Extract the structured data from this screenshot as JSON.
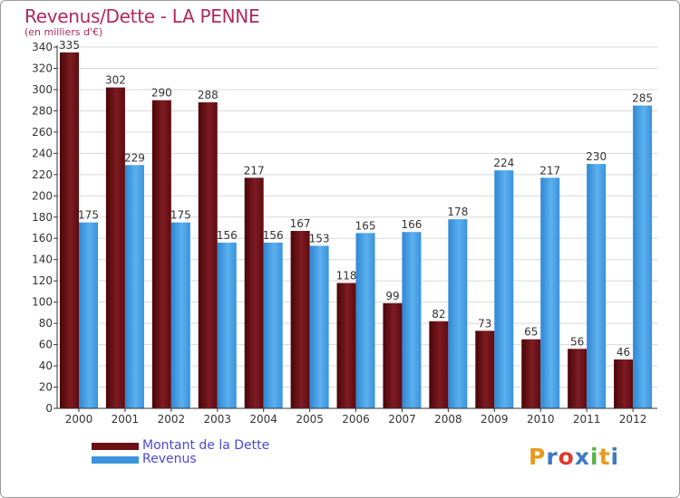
{
  "header": {
    "title": "Revenus/Dette - LA PENNE",
    "subtitle": "(en milliers d'€)"
  },
  "legend": {
    "items": [
      {
        "label": "Montant de la Dette",
        "color": "#6b0f14"
      },
      {
        "label": "Revenus",
        "color": "#3b95dd"
      }
    ]
  },
  "logo": {
    "text": "Proxiti",
    "colors": [
      "#e89a1e",
      "#3d7ac7",
      "#df3a2c",
      "#3d7ac7",
      "#56b447",
      "#e89a1e",
      "#3d7ac7"
    ]
  },
  "colors": {
    "axis": "#333333",
    "grid": "#d9d9d9",
    "label": "#333333",
    "title": "#b2285f"
  },
  "chart_data": {
    "type": "bar",
    "title": "Revenus/Dette - LA PENNE",
    "subtitle": "(en milliers d'€)",
    "xlabel": "",
    "ylabel": "",
    "ylim": [
      0,
      340
    ],
    "ytick_step": 20,
    "categories": [
      "2000",
      "2001",
      "2002",
      "2003",
      "2004",
      "2005",
      "2006",
      "2007",
      "2008",
      "2009",
      "2010",
      "2011",
      "2012"
    ],
    "series": [
      {
        "name": "Montant de la Dette",
        "color": "#6b0f14",
        "values": [
          335,
          302,
          290,
          288,
          217,
          167,
          118,
          99,
          82,
          73,
          65,
          56,
          46
        ]
      },
      {
        "name": "Revenus",
        "color": "#3b95dd",
        "values": [
          175,
          229,
          175,
          156,
          156,
          153,
          165,
          166,
          178,
          224,
          217,
          230,
          285
        ]
      }
    ],
    "grid": true,
    "legend_position": "bottom-left"
  }
}
